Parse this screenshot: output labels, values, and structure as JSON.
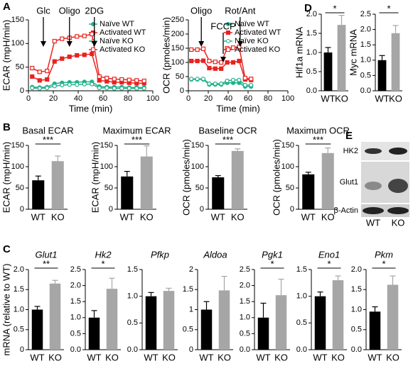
{
  "panel_labels": [
    "A",
    "B",
    "C",
    "D",
    "E"
  ],
  "blot": {
    "rows": [
      "HK2",
      "Glut1",
      "β-Actin"
    ],
    "lanes": [
      "WT",
      "KO"
    ]
  },
  "chart_data": [
    {
      "type": "line",
      "y_label": "ECAR (mpH/min)",
      "x_label": "Time (min)",
      "xlim": [
        0,
        100
      ],
      "xticks": [
        0,
        20,
        40,
        60,
        80,
        100
      ],
      "ylim": [
        0,
        150
      ],
      "yticks": [
        0,
        50,
        100,
        150
      ],
      "legend": "upper right",
      "annotations": [
        {
          "text": "Glc",
          "x": 12
        },
        {
          "text": "Oligo",
          "x": 33
        },
        {
          "text": "2DG",
          "x": 53
        }
      ],
      "x": [
        3,
        9,
        15,
        21,
        27,
        33,
        39,
        45,
        51,
        57,
        63,
        69,
        75,
        81,
        87,
        93
      ],
      "series": [
        {
          "name": "Naïve WT",
          "color": "#1fb28a",
          "marker": "filled",
          "symbol": "circle",
          "values": [
            8,
            7,
            8,
            15,
            17,
            18,
            18,
            19,
            19,
            9,
            8,
            8,
            8,
            7,
            7,
            7
          ]
        },
        {
          "name": "Activated WT",
          "color": "#e8231f",
          "marker": "filled",
          "symbol": "square",
          "values": [
            30,
            22,
            24,
            62,
            68,
            72,
            75,
            76,
            78,
            22,
            20,
            18,
            18,
            17,
            16,
            16
          ]
        },
        {
          "name": "Naïve KO",
          "color": "#1fb28a",
          "marker": "open",
          "symbol": "circle",
          "values": [
            6,
            5,
            6,
            10,
            12,
            13,
            13,
            14,
            14,
            6,
            6,
            5,
            5,
            5,
            5,
            5
          ]
        },
        {
          "name": "Activated KO",
          "color": "#e8231f",
          "marker": "open",
          "symbol": "square",
          "values": [
            48,
            40,
            42,
            105,
            110,
            112,
            115,
            116,
            120,
            30,
            27,
            25,
            24,
            23,
            22,
            21
          ]
        }
      ]
    },
    {
      "type": "line",
      "y_label": "OCR (pmoles/min)",
      "x_label": "Time (min)",
      "xlim": [
        0,
        100
      ],
      "xticks": [
        0,
        20,
        40,
        60,
        80,
        100
      ],
      "ylim": [
        0,
        250
      ],
      "yticks": [
        0,
        50,
        100,
        150,
        200,
        250
      ],
      "legend": "upper right",
      "annotations": [
        {
          "text": "Oligo",
          "x": 13
        },
        {
          "text": "FCCP",
          "x": 35
        },
        {
          "text": "Rot/Ant",
          "x": 52
        }
      ],
      "x": [
        3,
        9,
        15,
        21,
        27,
        33,
        39,
        45,
        51,
        57,
        63
      ],
      "series": [
        {
          "name": "Naïve WT",
          "color": "#1fb28a",
          "marker": "filled",
          "symbol": "circle",
          "values": [
            40,
            40,
            40,
            22,
            22,
            22,
            28,
            28,
            28,
            15,
            15
          ]
        },
        {
          "name": "Activated WT",
          "color": "#e8231f",
          "marker": "filled",
          "symbol": "square",
          "values": [
            105,
            105,
            106,
            80,
            78,
            78,
            100,
            100,
            105,
            40,
            38
          ]
        },
        {
          "name": "Naïve KO",
          "color": "#1fb28a",
          "marker": "open",
          "symbol": "circle",
          "values": [
            42,
            42,
            42,
            25,
            25,
            25,
            35,
            38,
            38,
            20,
            20
          ]
        },
        {
          "name": "Activated KO",
          "color": "#e8231f",
          "marker": "open",
          "symbol": "square",
          "values": [
            145,
            145,
            148,
            105,
            102,
            100,
            150,
            152,
            155,
            45,
            42
          ]
        }
      ]
    },
    {
      "type": "bar",
      "title": "Basal ECAR",
      "y_label": "ECAR (mpH/min)",
      "categories": [
        "WT",
        "KO"
      ],
      "values": [
        68,
        113
      ],
      "errors": [
        10,
        12
      ],
      "colors": [
        "#000000",
        "#a6a6a6"
      ],
      "ylim": [
        0,
        150
      ],
      "yticks": [
        0,
        50,
        100,
        150
      ],
      "annotation": "***"
    },
    {
      "type": "bar",
      "title": "Maximum ECAR",
      "y_label": "ECAR (mpH/min)",
      "categories": [
        "WT",
        "KO"
      ],
      "values": [
        77,
        124
      ],
      "errors": [
        12,
        25
      ],
      "colors": [
        "#000000",
        "#a6a6a6"
      ],
      "ylim": [
        0,
        150
      ],
      "yticks": [
        0,
        50,
        100,
        150
      ],
      "annotation": "***"
    },
    {
      "type": "bar",
      "title": "Baseline OCR",
      "y_label": "OCR (pmoles/min)",
      "categories": [
        "WT",
        "KO"
      ],
      "values": [
        75,
        137
      ],
      "errors": [
        4,
        5
      ],
      "colors": [
        "#000000",
        "#a6a6a6"
      ],
      "ylim": [
        0,
        150
      ],
      "yticks": [
        0,
        50,
        100,
        150
      ],
      "annotation": "***"
    },
    {
      "type": "bar",
      "title": "Maximum OCR",
      "y_label": "OCR (pmoles/min)",
      "categories": [
        "WT",
        "KO"
      ],
      "values": [
        82,
        132
      ],
      "errors": [
        5,
        12
      ],
      "colors": [
        "#000000",
        "#a6a6a6"
      ],
      "ylim": [
        0,
        150
      ],
      "yticks": [
        0,
        50,
        100,
        150
      ],
      "annotation": "***"
    },
    {
      "type": "bar",
      "title": "Glut1",
      "italic": true,
      "y_label": "mRNA (relative to WT)",
      "categories": [
        "WT",
        "KO"
      ],
      "values": [
        1.0,
        1.65
      ],
      "errors": [
        0.08,
        0.08
      ],
      "colors": [
        "#000000",
        "#a6a6a6"
      ],
      "ylim": [
        0,
        2
      ],
      "yticks": [
        0,
        0.5,
        {
          "value": 1,
          "label": "1.0"
        },
        1.5,
        {
          "value": 2,
          "label": "2.0"
        }
      ],
      "annotation": "**"
    },
    {
      "type": "bar",
      "title": "Hk2",
      "italic": true,
      "categories": [
        "WT",
        "KO"
      ],
      "values": [
        1.0,
        1.9
      ],
      "errors": [
        0.22,
        0.33
      ],
      "colors": [
        "#000000",
        "#a6a6a6"
      ],
      "ylim": [
        0,
        2.5
      ],
      "yticks": [
        {
          "value": 0,
          "label": "0.0"
        },
        0.5,
        {
          "value": 1,
          "label": "1.0"
        },
        1.5,
        {
          "value": 2,
          "label": "2.0"
        },
        2.5
      ],
      "annotation": "*"
    },
    {
      "type": "bar",
      "title": "Pfkp",
      "italic": true,
      "categories": [
        "WT",
        "KO"
      ],
      "values": [
        1.0,
        1.1
      ],
      "errors": [
        0.07,
        0.05
      ],
      "colors": [
        "#000000",
        "#a6a6a6"
      ],
      "ylim": [
        0,
        1.5
      ],
      "yticks": [
        {
          "value": 0,
          "label": "0.0"
        },
        0.5,
        {
          "value": 1,
          "label": "1.0"
        },
        1.5
      ]
    },
    {
      "type": "bar",
      "title": "Aldoa",
      "italic": true,
      "categories": [
        "WT",
        "KO"
      ],
      "values": [
        1.0,
        1.48
      ],
      "errors": [
        0.2,
        0.35
      ],
      "colors": [
        "#000000",
        "#a6a6a6"
      ],
      "ylim": [
        0,
        2
      ],
      "yticks": [
        0,
        0.5,
        1,
        1.5,
        2
      ]
    },
    {
      "type": "bar",
      "title": "Pgk1",
      "italic": true,
      "categories": [
        "WT",
        "KO"
      ],
      "values": [
        1.0,
        1.7
      ],
      "errors": [
        0.45,
        0.5
      ],
      "colors": [
        "#000000",
        "#a6a6a6"
      ],
      "ylim": [
        0,
        2.5
      ],
      "yticks": [
        {
          "value": 0,
          "label": "0.0"
        },
        0.5,
        {
          "value": 1,
          "label": "1.0"
        },
        1.5,
        {
          "value": 2,
          "label": "2.0"
        },
        2.5
      ],
      "annotation": "*"
    },
    {
      "type": "bar",
      "title": "Eno1",
      "italic": true,
      "categories": [
        "WT",
        "KO"
      ],
      "values": [
        1.0,
        1.3
      ],
      "errors": [
        0.08,
        0.08
      ],
      "colors": [
        "#000000",
        "#a6a6a6"
      ],
      "ylim": [
        0,
        1.5
      ],
      "yticks": [
        {
          "value": 0,
          "label": "0.0"
        },
        0.5,
        {
          "value": 1,
          "label": "1.0"
        },
        1.5
      ],
      "annotation": "*"
    },
    {
      "type": "bar",
      "title": "Pkm",
      "italic": true,
      "categories": [
        "WT",
        "KO"
      ],
      "values": [
        0.95,
        1.62
      ],
      "errors": [
        0.12,
        0.22
      ],
      "colors": [
        "#000000",
        "#a6a6a6"
      ],
      "ylim": [
        0,
        2
      ],
      "yticks": [
        {
          "value": 0,
          "label": "0.0"
        },
        0.5,
        {
          "value": 1,
          "label": "1.0"
        },
        1.5,
        {
          "value": 2,
          "label": "2.0"
        }
      ],
      "annotation": "*"
    },
    {
      "type": "bar",
      "y_label": "Hif1a mRNA",
      "categories": [
        "WT",
        "KO"
      ],
      "values": [
        1.0,
        1.72
      ],
      "errors": [
        0.13,
        0.25
      ],
      "colors": [
        "#000000",
        "#a6a6a6"
      ],
      "ylim": [
        0,
        2
      ],
      "yticks": [
        {
          "value": 0,
          "label": "0.0"
        },
        0.5,
        {
          "value": 1,
          "label": "1.0"
        },
        1.5,
        {
          "value": 2,
          "label": "2.0"
        }
      ],
      "annotation": "*"
    },
    {
      "type": "bar",
      "y_label": "Myc mRNA",
      "categories": [
        "WT",
        "KO"
      ],
      "values": [
        1.0,
        1.88
      ],
      "errors": [
        0.15,
        0.25
      ],
      "colors": [
        "#000000",
        "#a6a6a6"
      ],
      "ylim": [
        0,
        2.5
      ],
      "yticks": [
        {
          "value": 0,
          "label": "0.0"
        },
        0.5,
        {
          "value": 1,
          "label": "1.0"
        },
        1.5,
        {
          "value": 2,
          "label": "2.0"
        },
        2.5
      ],
      "annotation": "*"
    }
  ]
}
